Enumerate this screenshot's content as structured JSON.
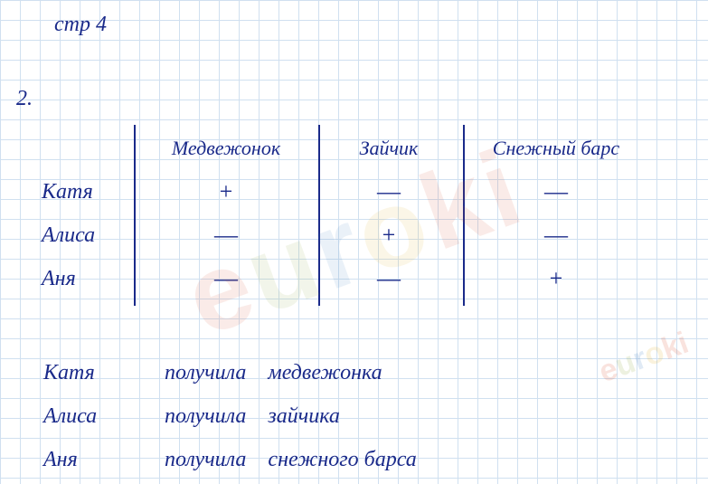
{
  "page_title": "стр 4",
  "problem_number": "2.",
  "table": {
    "columns": [
      "Медвежонок",
      "Зайчик",
      "Снежный барс"
    ],
    "rows": [
      "Катя",
      "Алиса",
      "Аня"
    ],
    "marks": [
      [
        "+",
        "—",
        "—"
      ],
      [
        "—",
        "+",
        "—"
      ],
      [
        "—",
        "—",
        "+"
      ]
    ]
  },
  "answers": [
    {
      "name": "Катя",
      "verb": "получила",
      "object": "медвежонка"
    },
    {
      "name": "Алиса",
      "verb": "получила",
      "object": "зайчика"
    },
    {
      "name": "Аня",
      "verb": "получила",
      "object": "снежного барса"
    }
  ],
  "watermark": "euroki",
  "colors": {
    "ink": "#1a2a8a",
    "grid": "#d0e0f0",
    "background": "#ffffff"
  }
}
